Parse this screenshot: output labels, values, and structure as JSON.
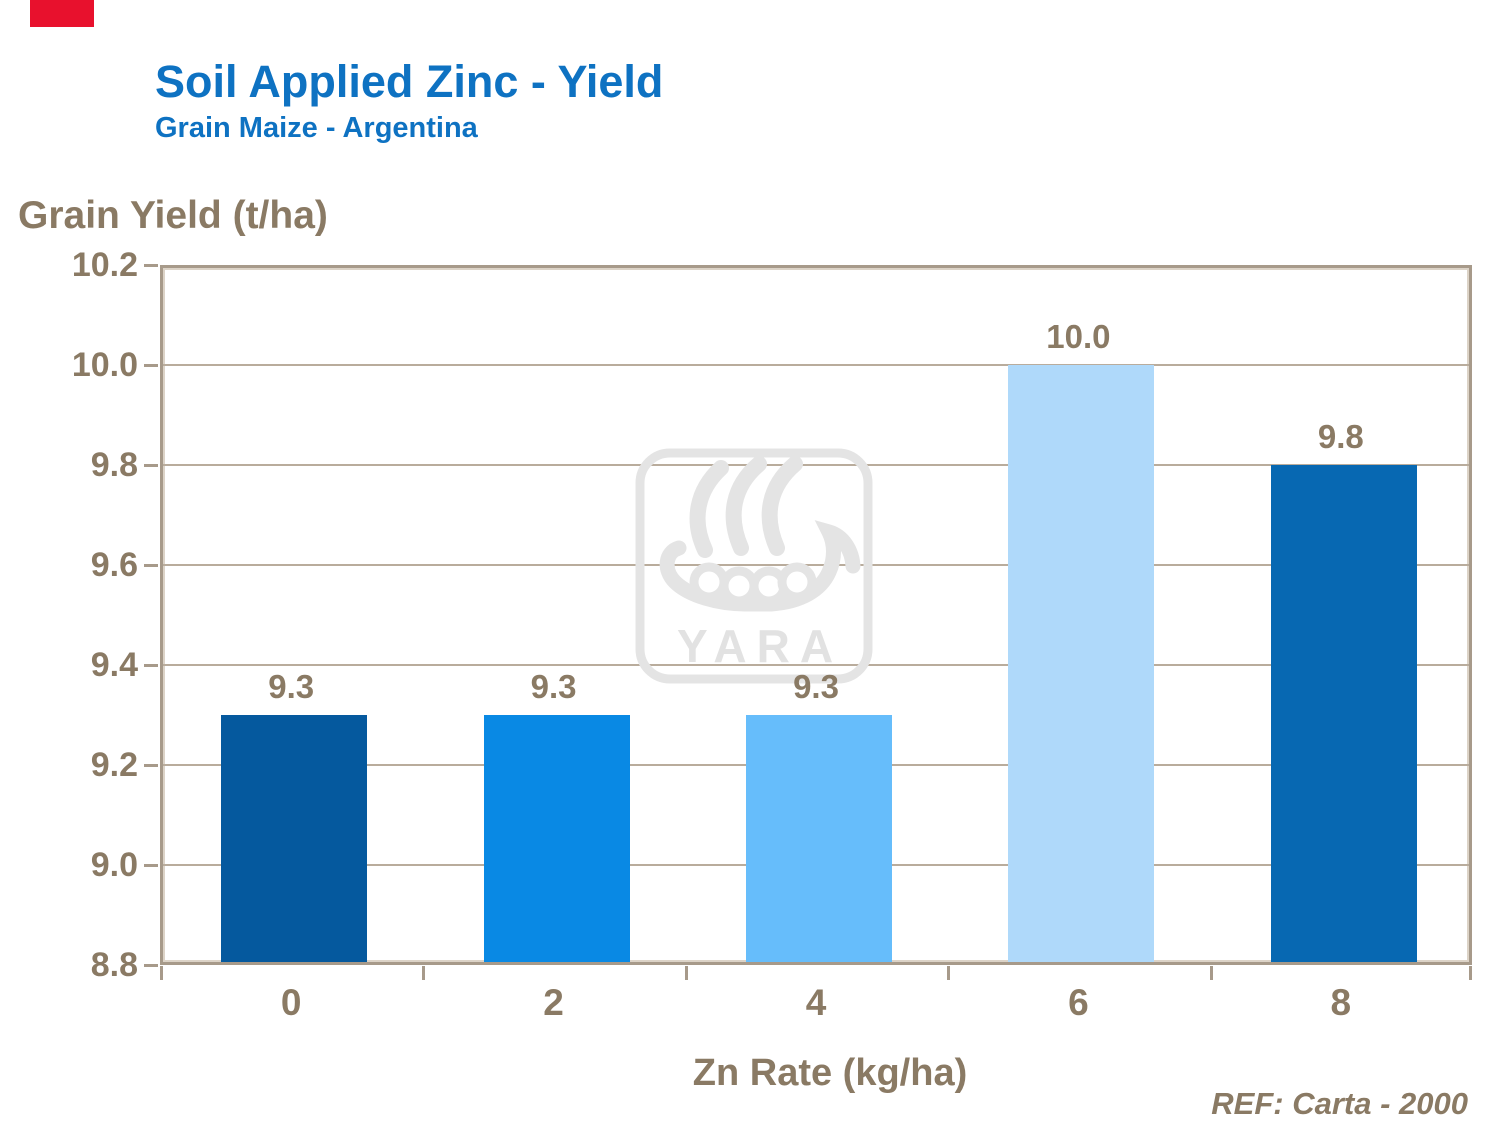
{
  "slide": {
    "title": "Soil Applied Zinc - Yield",
    "subtitle": "Grain Maize - Argentina",
    "ref_note": "REF: Carta - 2000",
    "colors": {
      "title_blue": "#0E72C2",
      "text_brown": "#8A7A64",
      "red_mark": "#E8112D",
      "gridline": "#B9AC9C",
      "plot_border": "#A79A8A",
      "watermark_gray": "#E4E4E4"
    }
  },
  "watermark": {
    "brand_text": "YARA"
  },
  "chart_data": {
    "type": "bar",
    "title": "Soil Applied Zinc - Yield",
    "subtitle": "Grain Maize - Argentina",
    "xlabel": "Zn Rate (kg/ha)",
    "ylabel": "Grain Yield (t/ha)",
    "categories": [
      "0",
      "2",
      "4",
      "6",
      "8"
    ],
    "values": [
      9.3,
      9.3,
      9.3,
      10.0,
      9.8
    ],
    "value_labels": [
      "9.3",
      "9.3",
      "9.3",
      "10.0",
      "9.8"
    ],
    "bar_colors": [
      "#05599E",
      "#0989E4",
      "#66BDFB",
      "#AFD9FA",
      "#0768B2"
    ],
    "ylim": [
      8.8,
      10.2
    ],
    "ytick_step": 0.2,
    "yticks": [
      "10.2",
      "10.0",
      "9.8",
      "9.6",
      "9.4",
      "9.2",
      "9.0",
      "8.8"
    ],
    "grid": true,
    "legend": false
  }
}
